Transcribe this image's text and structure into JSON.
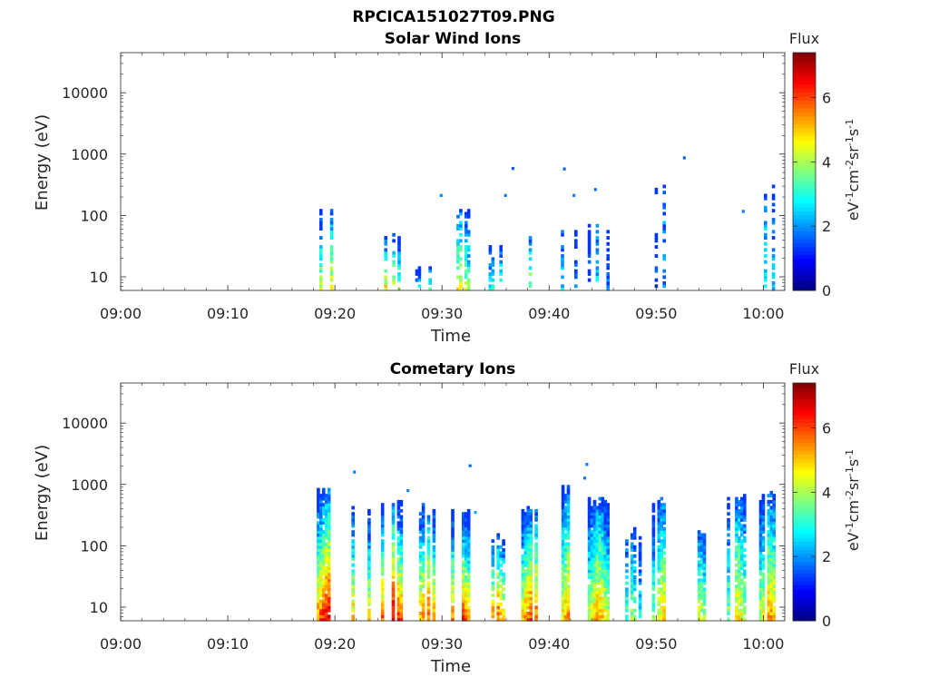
{
  "figure_title": "RPCICA151027T09.PNG",
  "chart_data": [
    {
      "type": "heatmap",
      "title": "Solar Wind Ions",
      "xlabel": "Time",
      "ylabel": "Energy (eV)",
      "x_ticks": [
        "09:00",
        "09:10",
        "09:20",
        "09:30",
        "09:40",
        "09:50",
        "10:00"
      ],
      "x_range_minutes": [
        0,
        62
      ],
      "y_scale": "log",
      "y_ticks": [
        {
          "value": 10,
          "label": "10"
        },
        {
          "value": 100,
          "label": "100"
        },
        {
          "value": 1000,
          "label": "1000"
        },
        {
          "value": 10000,
          "label": "10000"
        }
      ],
      "y_range": [
        6,
        45000
      ],
      "colorbar": {
        "title": "Flux",
        "label": "eV-1 cm-2 sr-1 s-1",
        "range": [
          0,
          7.4
        ],
        "ticks": [
          {
            "value": 0,
            "label": "0"
          },
          {
            "value": 2,
            "label": "2"
          },
          {
            "value": 4,
            "label": "4"
          },
          {
            "value": 6,
            "label": "6"
          }
        ],
        "colormap": "jet"
      },
      "bursts": [
        {
          "t": 19.2,
          "e_top": 120,
          "f_max": 5.2,
          "density": 0.6
        },
        {
          "t": 22.2,
          "e_top": 70,
          "f_max": 4.5,
          "density": 0.45
        },
        {
          "t": 25.0,
          "e_top": 40,
          "f_max": 5.3,
          "density": 0.5
        },
        {
          "t": 28.4,
          "e_top": 14,
          "f_max": 3.5,
          "density": 0.4
        },
        {
          "t": 31.5,
          "e_top": 110,
          "f_max": 4.8,
          "density": 0.5
        },
        {
          "t": 35.0,
          "e_top": 30,
          "f_max": 3.8,
          "density": 0.4
        },
        {
          "t": 38.0,
          "e_top": 40,
          "f_max": 4.2,
          "density": 0.45
        },
        {
          "t": 41.5,
          "e_top": 60,
          "f_max": 3.0,
          "density": 0.3
        },
        {
          "t": 44.5,
          "e_top": 60,
          "f_max": 2.8,
          "density": 0.3
        },
        {
          "t": 50.5,
          "e_top": 300,
          "f_max": 2.2,
          "density": 0.25
        },
        {
          "t": 60.2,
          "e_top": 300,
          "f_max": 3.2,
          "density": 0.4
        }
      ],
      "isolated": [
        {
          "t": 36.5,
          "e": 550,
          "f": 1.6
        },
        {
          "t": 41.3,
          "e": 540,
          "f": 1.6
        },
        {
          "t": 52.5,
          "e": 820,
          "f": 1.6
        },
        {
          "t": 29.8,
          "e": 200,
          "f": 1.9
        },
        {
          "t": 44.2,
          "e": 250,
          "f": 1.7
        },
        {
          "t": 42.2,
          "e": 200,
          "f": 1.8
        },
        {
          "t": 35.8,
          "e": 200,
          "f": 1.8
        },
        {
          "t": 58.0,
          "e": 110,
          "f": 1.8
        }
      ]
    },
    {
      "type": "heatmap",
      "title": "Cometary Ions",
      "xlabel": "Time",
      "ylabel": "Energy (eV)",
      "x_ticks": [
        "09:00",
        "09:10",
        "09:20",
        "09:30",
        "09:40",
        "09:50",
        "10:00"
      ],
      "x_range_minutes": [
        0,
        62
      ],
      "y_scale": "log",
      "y_ticks": [
        {
          "value": 10,
          "label": "10"
        },
        {
          "value": 100,
          "label": "100"
        },
        {
          "value": 1000,
          "label": "1000"
        },
        {
          "value": 10000,
          "label": "10000"
        }
      ],
      "y_range": [
        6,
        45000
      ],
      "colorbar": {
        "title": "Flux",
        "label": "eV-1 cm-2 sr-1 s-1",
        "range": [
          0,
          7.4
        ],
        "ticks": [
          {
            "value": 0,
            "label": "0"
          },
          {
            "value": 2,
            "label": "2"
          },
          {
            "value": 4,
            "label": "4"
          },
          {
            "value": 6,
            "label": "6"
          }
        ],
        "colormap": "jet"
      },
      "bursts": [
        {
          "t": 19.2,
          "e_top": 800,
          "f_max": 6.8,
          "density": 0.8
        },
        {
          "t": 22.2,
          "e_top": 400,
          "f_max": 6.0,
          "density": 0.75
        },
        {
          "t": 25.2,
          "e_top": 500,
          "f_max": 7.0,
          "density": 0.8
        },
        {
          "t": 28.5,
          "e_top": 400,
          "f_max": 6.0,
          "density": 0.75
        },
        {
          "t": 31.5,
          "e_top": 300,
          "f_max": 6.5,
          "density": 0.8
        },
        {
          "t": 35.0,
          "e_top": 120,
          "f_max": 6.0,
          "density": 0.6
        },
        {
          "t": 38.3,
          "e_top": 400,
          "f_max": 6.2,
          "density": 0.8
        },
        {
          "t": 41.8,
          "e_top": 800,
          "f_max": 5.8,
          "density": 0.8
        },
        {
          "t": 44.5,
          "e_top": 500,
          "f_max": 5.5,
          "density": 0.8
        },
        {
          "t": 47.5,
          "e_top": 150,
          "f_max": 4.0,
          "density": 0.6
        },
        {
          "t": 50.5,
          "e_top": 500,
          "f_max": 5.0,
          "density": 0.75
        },
        {
          "t": 54.0,
          "e_top": 150,
          "f_max": 4.5,
          "density": 0.65
        },
        {
          "t": 57.5,
          "e_top": 600,
          "f_max": 5.0,
          "density": 0.75
        },
        {
          "t": 60.5,
          "e_top": 600,
          "f_max": 5.5,
          "density": 0.8
        }
      ],
      "isolated": [
        {
          "t": 21.7,
          "e": 1500,
          "f": 1.8
        },
        {
          "t": 32.5,
          "e": 1900,
          "f": 1.7
        },
        {
          "t": 43.4,
          "e": 2000,
          "f": 1.8
        },
        {
          "t": 43.2,
          "e": 1200,
          "f": 1.8
        },
        {
          "t": 33.0,
          "e": 330,
          "f": 2.2
        },
        {
          "t": 26.7,
          "e": 750,
          "f": 1.9
        }
      ]
    }
  ]
}
